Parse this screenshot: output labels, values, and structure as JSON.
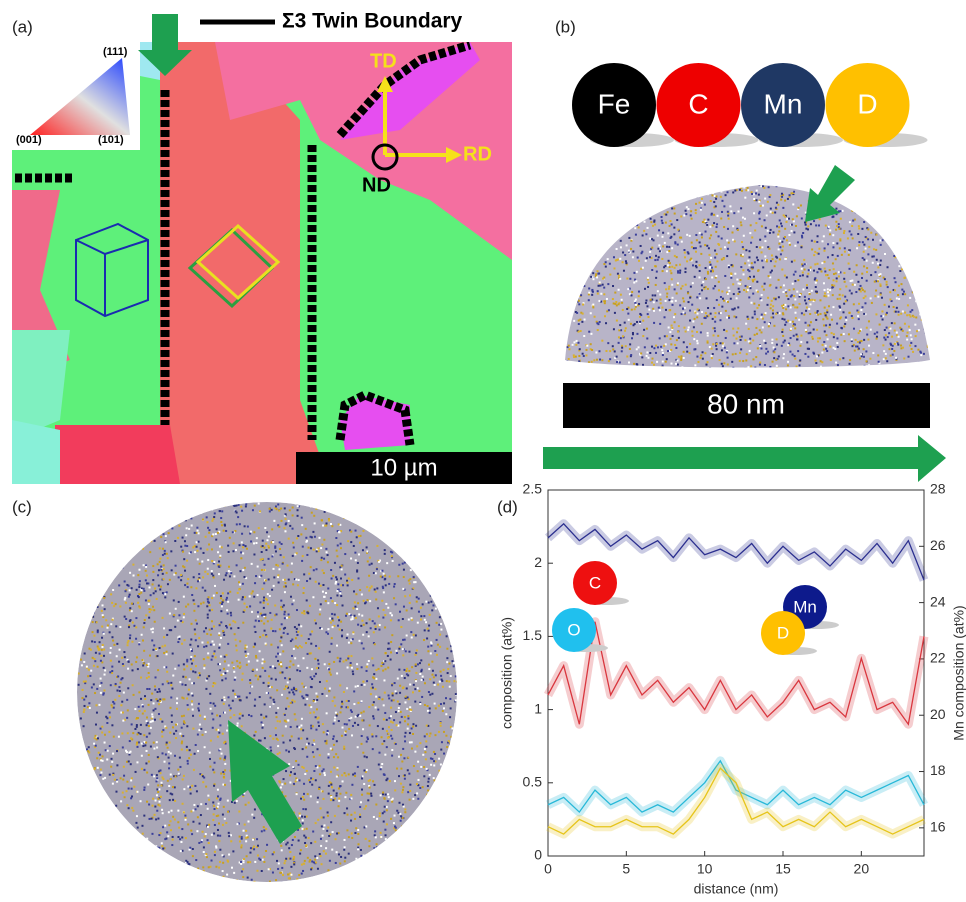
{
  "panels": {
    "a": {
      "label": "(a)",
      "legend_line": "Σ3 Twin Boundary",
      "ipf": [
        "(111)",
        "(001)",
        "(101)"
      ],
      "axes": [
        "TD",
        "RD",
        "ND"
      ],
      "scale_bar": "10 µm"
    },
    "b": {
      "label": "(b)",
      "atoms": [
        "Fe",
        "C",
        "Mn",
        "D"
      ],
      "scale_bar": "80 nm"
    },
    "c": {
      "label": "(c)"
    },
    "d": {
      "label": "(d)"
    }
  },
  "chart_data": {
    "type": "line",
    "xlabel": "distance (nm)",
    "ylabel": "composition (at%)",
    "y2label": "Mn composition (at%)",
    "x": [
      0,
      1,
      2,
      3,
      4,
      5,
      6,
      7,
      8,
      9,
      10,
      11,
      12,
      13,
      14,
      15,
      16,
      17,
      18,
      19,
      20,
      21,
      22,
      23,
      24
    ],
    "series": [
      {
        "name": "Mn",
        "color": "#2b2f8f",
        "axis": "y2",
        "values": [
          26.3,
          26.8,
          26.2,
          26.6,
          26.0,
          26.4,
          25.9,
          26.2,
          25.6,
          26.3,
          25.7,
          25.9,
          25.6,
          26.1,
          25.4,
          26.0,
          25.5,
          25.8,
          25.3,
          25.9,
          25.5,
          26.1,
          25.4,
          26.2,
          24.8
        ]
      },
      {
        "name": "C",
        "color": "#d9363e",
        "values": [
          1.1,
          1.3,
          0.9,
          1.6,
          1.1,
          1.3,
          1.1,
          1.2,
          1.05,
          1.15,
          1.0,
          1.2,
          1.0,
          1.1,
          0.95,
          1.05,
          1.2,
          1.0,
          1.05,
          0.95,
          1.35,
          1.0,
          1.05,
          0.9,
          1.5
        ]
      },
      {
        "name": "O",
        "color": "#27b8d8",
        "values": [
          0.35,
          0.4,
          0.3,
          0.45,
          0.35,
          0.4,
          0.3,
          0.35,
          0.3,
          0.4,
          0.5,
          0.65,
          0.45,
          0.4,
          0.35,
          0.45,
          0.35,
          0.4,
          0.35,
          0.45,
          0.4,
          0.45,
          0.5,
          0.55,
          0.35
        ]
      },
      {
        "name": "D",
        "color": "#e6c41a",
        "values": [
          0.2,
          0.15,
          0.25,
          0.2,
          0.2,
          0.25,
          0.2,
          0.2,
          0.15,
          0.25,
          0.4,
          0.6,
          0.5,
          0.25,
          0.3,
          0.2,
          0.25,
          0.2,
          0.3,
          0.2,
          0.25,
          0.2,
          0.15,
          0.2,
          0.25
        ]
      }
    ],
    "xlim": [
      0,
      24
    ],
    "xticks": [
      0,
      5,
      10,
      15,
      20
    ],
    "ylim": [
      0,
      2.5
    ],
    "yticks": [
      0,
      0.5,
      1,
      1.5,
      2,
      2.5
    ],
    "y2lim": [
      15,
      28
    ],
    "y2ticks": [
      16,
      18,
      20,
      22,
      24,
      26,
      28
    ]
  }
}
